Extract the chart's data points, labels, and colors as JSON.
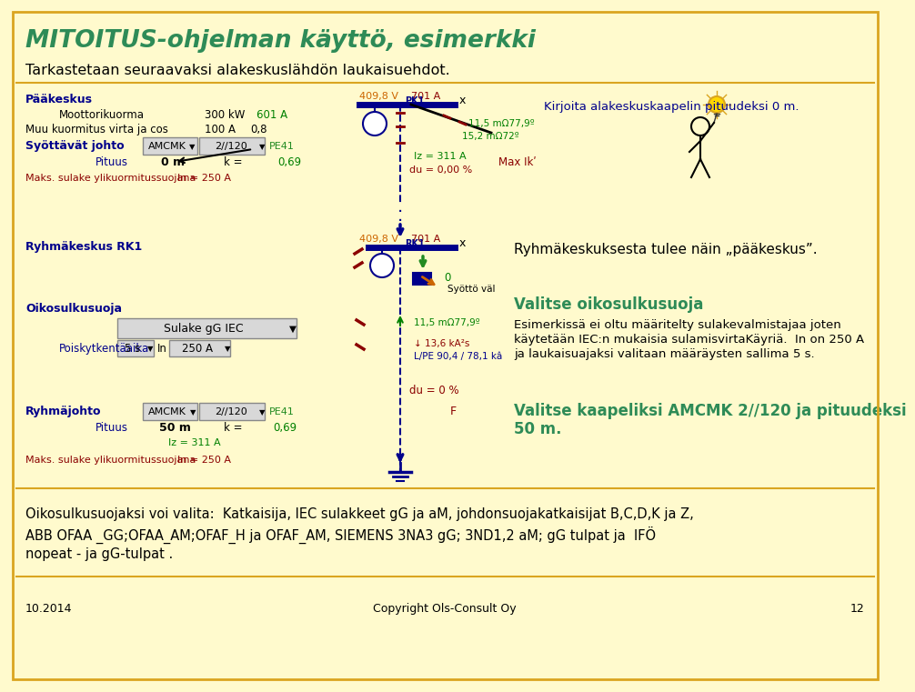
{
  "bg_color": "#FFFACD",
  "border_color": "#DAA520",
  "title": "MITOITUS-ohjelman käyttö, esimerkki",
  "title_color": "#2E8B57",
  "subtitle": "Tarkastetaan seuraavaksi alakeskuslähdön laukaisuehdot.",
  "subtitle_color": "#000000",
  "paakeskus_label": "Pääkeskus",
  "paakeskus_color": "#00008B",
  "moottorikuorma_label": "Moottorikuorma",
  "moottorikuorma_val": "300 kW",
  "moottorikuorma_A": "601 A",
  "muu_label": "Muu kuormitus virta ja cos",
  "muu_A": "100 A",
  "muu_cos": "0,8",
  "syottavat_label": "Syöttävät johto",
  "syottavat_color": "#00008B",
  "cable_type": "AMCMK",
  "cable_size": "2//120",
  "cable_pe": "PE41",
  "pituus_label": "Pituus",
  "pituus_val": "0 m",
  "k_val": "k =",
  "k_num": "0,69",
  "iz_val": "Iz = 311 A",
  "du_val": "du = 0,00 %",
  "voltage_top": "409,8 V",
  "current_top": "701 A",
  "pk1_label": "PK1",
  "impedance1": "11,5 mΩ77,9º",
  "impedance2": "15,2 mΩ72º",
  "maks_label": "Maks. sulake ylikuormitussuojana",
  "In_val": "In = 250 A",
  "max_ik_label": "Max Ikʹ",
  "kirjoita_text": "Kirjoita alakeskuskaapelin pituudeksi 0 m.",
  "kirjoita_color": "#00008B",
  "ryhma_rk1_label": "Ryhmäkeskus RK1",
  "ryhma_rk1_color": "#00008B",
  "ryhma_text": "Ryhmäkeskuksesta tulee näin „pääkeskus”.",
  "ryhma_text_color": "#000000",
  "voltage_rk1": "409,8 V",
  "current_rk1": "701 A",
  "rk1_label": "RK1",
  "syotto_val": "0",
  "syotto_label": "Syöttö väl",
  "oikosulku_label": "Oikosulkusuoja",
  "oikosulku_color": "#00008B",
  "sulake_label": "Sulake gG IEC",
  "poisky_label": "Poiskytkentäaika",
  "poisky_time": "5 s",
  "poisky_In": "250 A",
  "impedance_rk1": "11,5 mΩ77,9º",
  "ika2s": "13,6 kA²s",
  "lpe": "L/PE 90,4 / 78,1 kâ",
  "du_rk1": "du = 0 %",
  "ryhma_johto_label": "Ryhmäjohto",
  "ryhma_johto_color": "#00008B",
  "cable2_type": "AMCMK",
  "cable2_size": "2//120",
  "cable2_pe": "PE41",
  "pituus2_val": "50 m",
  "k2_val": "k =",
  "k2_num": "0,69",
  "iz2_val": "Iz = 311 A",
  "f_label": "F",
  "maks2_label": "Maks. sulake ylikuormitussuojana",
  "In2_val": "In = 250 A",
  "valitse_oiko_title": "Valitse oikosulkusuoja",
  "valitse_oiko_color": "#2E8B57",
  "valitse_oiko_text1": "Esimerkissä ei oltu määritelty sulakevalmistajaa joten",
  "valitse_oiko_text2": "käytetään IEC:n mukaisia sulamisvirtaKäyriä.  In on 250 A",
  "valitse_oiko_text3": "ja laukaisuajaksi valitaan määräysten sallima 5 s.",
  "valitse_oiko_text_color": "#000000",
  "valitse_kaapeli_text1": "Valitse kaapeliksi AMCMK 2//120 ja pituudeksi",
  "valitse_kaapeli_text2": "50 m.",
  "valitse_kaapeli_color": "#2E8B57",
  "bottom_text1": "Oikosulkusuojaksi voi valita:  Katkaisija, IEC sulakkeet gG ja aM, johdonsuojakatkaisijat B,C,D,K ja Z,",
  "bottom_text2": "ABB OFAA _GG;OFAA_AM;OFAF_H ja OFAF_AM, SIEMENS 3NA3 gG; 3ND1,2 aM; gG tulpat ja  IFÖ",
  "bottom_text3": "nopeat - ja gG-tulpat .",
  "bottom_text_color": "#000000",
  "date_text": "10.2014",
  "copyright_text": "Copyright Ols-Consult Oy",
  "page_num": "12",
  "footer_color": "#000000",
  "line_color_blue": "#00008B",
  "line_color_green": "#008000",
  "line_color_red": "#8B0000",
  "orange_color": "#CC6600",
  "dark_red": "#8B0000",
  "green_arrow": "#228B22"
}
